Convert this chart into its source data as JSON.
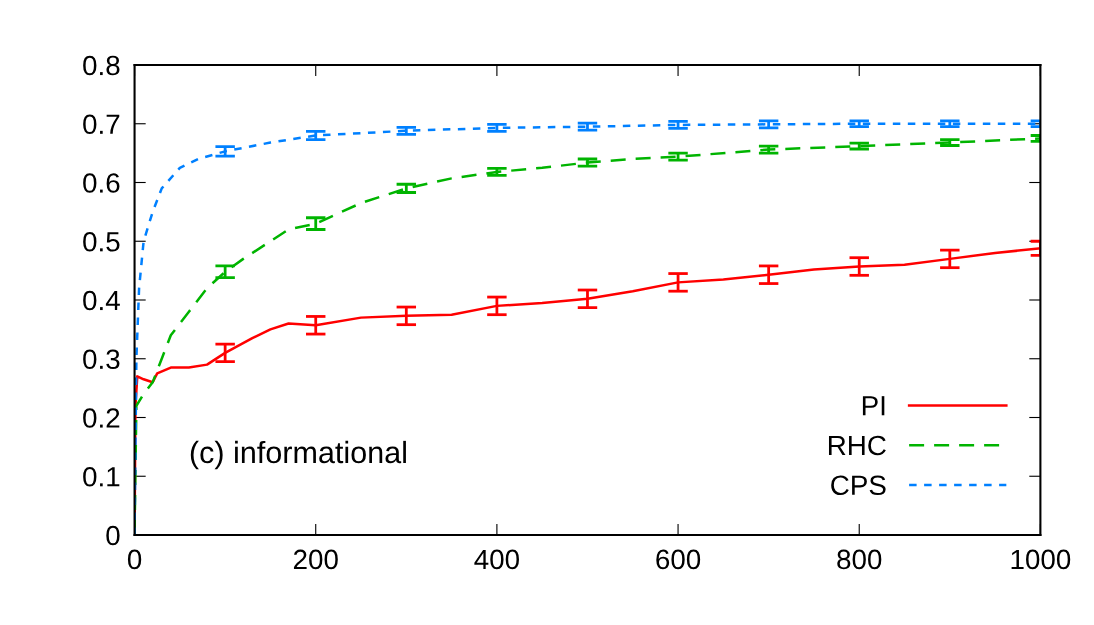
{
  "chart_data": {
    "type": "line",
    "xlim": [
      0,
      1000
    ],
    "ylim": [
      0,
      0.8
    ],
    "xticks": [
      0,
      200,
      400,
      600,
      800,
      1000
    ],
    "yticks": [
      0,
      0.1,
      0.2,
      0.3,
      0.4,
      0.5,
      0.6,
      0.7,
      0.8
    ],
    "grid": false,
    "legend": "bottom right",
    "annotations": [
      "(c) informational"
    ],
    "series": [
      {
        "name": "PI",
        "color": "#ff0000",
        "line_style": "solid",
        "x": [
          0,
          1,
          3,
          10,
          20,
          25,
          40,
          60,
          80,
          100,
          130,
          150,
          170,
          200,
          250,
          300,
          350,
          400,
          450,
          500,
          550,
          600,
          650,
          700,
          750,
          800,
          850,
          900,
          950,
          1000
        ],
        "values": [
          0,
          0.22,
          0.27,
          0.265,
          0.26,
          0.275,
          0.285,
          0.285,
          0.29,
          0.31,
          0.335,
          0.35,
          0.36,
          0.357,
          0.37,
          0.373,
          0.375,
          0.39,
          0.395,
          0.402,
          0.415,
          0.43,
          0.435,
          0.443,
          0.452,
          0.457,
          0.46,
          0.47,
          0.48,
          0.488
        ],
        "errors": [
          null,
          null,
          null,
          null,
          null,
          null,
          null,
          null,
          null,
          0.015,
          null,
          null,
          null,
          0.015,
          null,
          0.015,
          null,
          0.015,
          null,
          0.015,
          null,
          0.015,
          null,
          0.015,
          null,
          0.015,
          null,
          0.015,
          null,
          0.012
        ]
      },
      {
        "name": "RHC",
        "color": "#00b400",
        "line_style": "dashed",
        "x": [
          0,
          2,
          10,
          20,
          30,
          40,
          60,
          80,
          100,
          120,
          150,
          170,
          200,
          250,
          300,
          350,
          400,
          450,
          500,
          550,
          600,
          700,
          800,
          900,
          1000
        ],
        "values": [
          0,
          0.22,
          0.24,
          0.26,
          0.3,
          0.34,
          0.38,
          0.42,
          0.448,
          0.47,
          0.5,
          0.52,
          0.53,
          0.565,
          0.59,
          0.607,
          0.618,
          0.625,
          0.634,
          0.64,
          0.644,
          0.656,
          0.662,
          0.668,
          0.675
        ],
        "errors": [
          null,
          null,
          null,
          null,
          null,
          null,
          null,
          null,
          0.01,
          null,
          null,
          null,
          0.01,
          null,
          0.007,
          null,
          0.006,
          null,
          0.006,
          null,
          0.006,
          0.006,
          0.005,
          0.005,
          0.005
        ]
      },
      {
        "name": "CPS",
        "color": "#0080ff",
        "line_style": "dotted",
        "x": [
          0,
          2,
          5,
          10,
          20,
          30,
          50,
          70,
          100,
          150,
          200,
          300,
          400,
          500,
          600,
          700,
          800,
          900,
          1000
        ],
        "values": [
          0,
          0.3,
          0.42,
          0.5,
          0.55,
          0.59,
          0.625,
          0.64,
          0.653,
          0.668,
          0.68,
          0.688,
          0.693,
          0.695,
          0.698,
          0.699,
          0.7,
          0.7,
          0.7
        ],
        "errors": [
          null,
          null,
          null,
          null,
          null,
          null,
          null,
          null,
          0.008,
          null,
          0.007,
          0.006,
          0.006,
          0.006,
          0.006,
          0.006,
          0.005,
          0.005,
          0.005
        ]
      }
    ]
  }
}
